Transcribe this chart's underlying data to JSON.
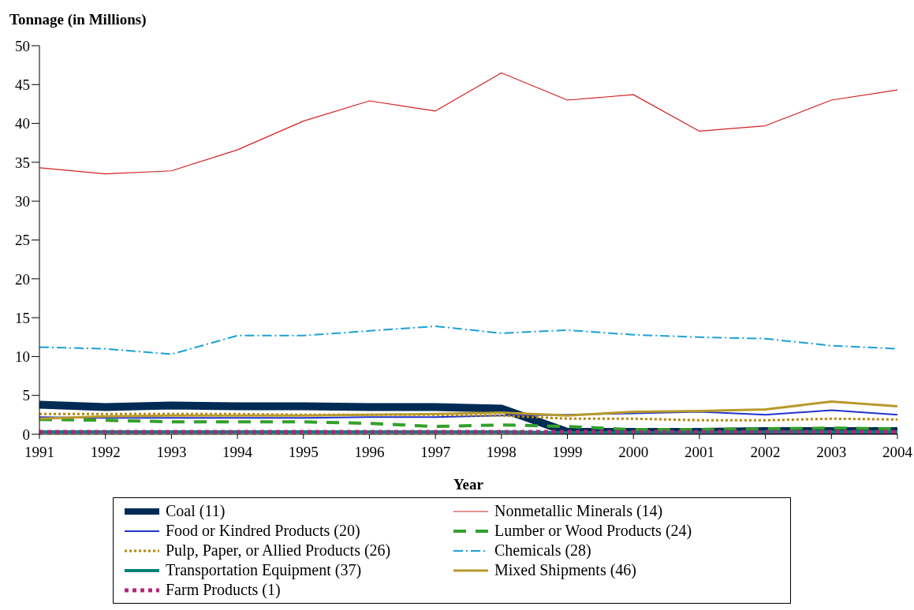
{
  "chart_data": {
    "type": "line",
    "xlabel": "Year",
    "ylabel": "Tonnage (in Millions)",
    "categories": [
      "1991",
      "1992",
      "1993",
      "1994",
      "1995",
      "1996",
      "1997",
      "1998",
      "1999",
      "2000",
      "2001",
      "2002",
      "2003",
      "2004"
    ],
    "ylim": [
      0,
      50
    ],
    "yticks": [
      0,
      5,
      10,
      15,
      20,
      25,
      30,
      35,
      40,
      45,
      50
    ],
    "grid": false,
    "legend": "bottom",
    "marker": "none",
    "series": [
      {
        "name": "Coal (11)",
        "color": "#002b55",
        "line_style": "solid",
        "values": [
          3.8,
          3.5,
          3.7,
          3.6,
          3.6,
          3.5,
          3.5,
          3.3,
          0.3,
          0.3,
          0.3,
          0.4,
          0.4,
          0.4
        ]
      },
      {
        "name": "Nonmetallic Minerals (14)",
        "color": "#d42020",
        "line_style": "solid",
        "values": [
          34.3,
          33.5,
          33.9,
          36.6,
          40.3,
          42.9,
          41.6,
          46.5,
          43.0,
          43.7,
          39.0,
          39.7,
          43.0,
          44.3
        ]
      },
      {
        "name": "Food or Kindred Products (20)",
        "color": "#2233cc",
        "line_style": "solid",
        "values": [
          2.2,
          2.1,
          2.1,
          2.1,
          2.1,
          2.2,
          2.2,
          2.4,
          2.5,
          2.7,
          2.9,
          2.5,
          3.1,
          2.5
        ]
      },
      {
        "name": "Lumber or Wood Products (24)",
        "color": "#33a02c",
        "line_style": "dashed",
        "values": [
          1.9,
          1.8,
          1.6,
          1.6,
          1.6,
          1.4,
          1.0,
          1.2,
          1.0,
          0.6,
          0.6,
          0.7,
          0.8,
          0.7
        ]
      },
      {
        "name": "Pulp, Paper, or Allied Products (26)",
        "color": "#b8860b",
        "line_style": "dotted",
        "values": [
          2.6,
          2.6,
          2.6,
          2.6,
          2.5,
          2.5,
          2.5,
          2.4,
          2.0,
          2.0,
          1.8,
          1.8,
          2.0,
          1.9
        ]
      },
      {
        "name": "Chemicals (28)",
        "color": "#1ba1d8",
        "line_style": "dashdot",
        "values": [
          11.2,
          11.0,
          10.3,
          12.7,
          12.7,
          13.3,
          13.9,
          13.0,
          13.4,
          12.8,
          12.5,
          12.3,
          11.4,
          11.0
        ]
      },
      {
        "name": "Transportation Equipment (37)",
        "color": "#00807a",
        "line_style": "solid",
        "values": [
          0.3,
          0.3,
          0.3,
          0.3,
          0.3,
          0.3,
          0.3,
          0.3,
          0.2,
          0.2,
          0.2,
          0.3,
          0.3,
          0.3
        ]
      },
      {
        "name": "Mixed Shipments (46)",
        "color": "#b89a2c",
        "line_style": "solid",
        "values": [
          2.0,
          2.3,
          2.4,
          2.4,
          2.4,
          2.5,
          2.6,
          2.8,
          2.4,
          2.9,
          3.0,
          3.2,
          4.2,
          3.6
        ]
      },
      {
        "name": "Farm Products (1)",
        "color": "#b0287a",
        "line_style": "dotted",
        "values": [
          0.3,
          0.3,
          0.3,
          0.3,
          0.3,
          0.3,
          0.3,
          0.3,
          0.3,
          0.3,
          0.3,
          0.3,
          0.3,
          0.3
        ]
      }
    ]
  }
}
